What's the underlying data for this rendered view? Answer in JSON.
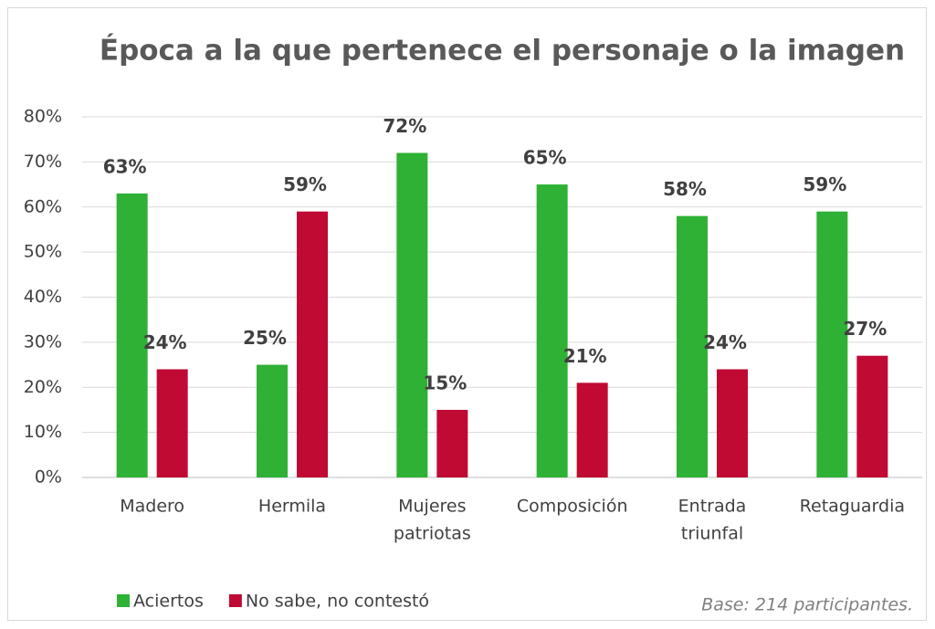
{
  "chart_data": {
    "type": "bar",
    "title": "Época a la que pertenece el personaje o la imagen",
    "categories": [
      [
        "Madero"
      ],
      [
        "Hermila"
      ],
      [
        "Mujeres",
        "patriotas"
      ],
      [
        "Composición"
      ],
      [
        "Entrada",
        "triunfal"
      ],
      [
        "Retaguardia"
      ]
    ],
    "series": [
      {
        "name": "Aciertos",
        "color": "#2eb135",
        "values": [
          63,
          25,
          72,
          65,
          58,
          59
        ],
        "value_labels": [
          "63%",
          "25%",
          "72%",
          "65%",
          "58%",
          "59%"
        ]
      },
      {
        "name": "No sabe, no contestó",
        "color": "#c00a33",
        "values": [
          24,
          59,
          15,
          21,
          24,
          27
        ],
        "value_labels": [
          "24%",
          "59%",
          "15%",
          "21%",
          "24%",
          "27%"
        ]
      }
    ],
    "ylim": [
      0,
      80
    ],
    "yticks": [
      {
        "value": 0,
        "label": "0%"
      },
      {
        "value": 10,
        "label": "10%"
      },
      {
        "value": 20,
        "label": "20%"
      },
      {
        "value": 30,
        "label": "30%"
      },
      {
        "value": 40,
        "label": "40%"
      },
      {
        "value": 50,
        "label": "50%"
      },
      {
        "value": 60,
        "label": "60%"
      },
      {
        "value": 70,
        "label": "70%"
      },
      {
        "value": 80,
        "label": "80%"
      }
    ],
    "grid": true,
    "legend": "bottom-left",
    "annotation": "Base: 214 participantes."
  }
}
